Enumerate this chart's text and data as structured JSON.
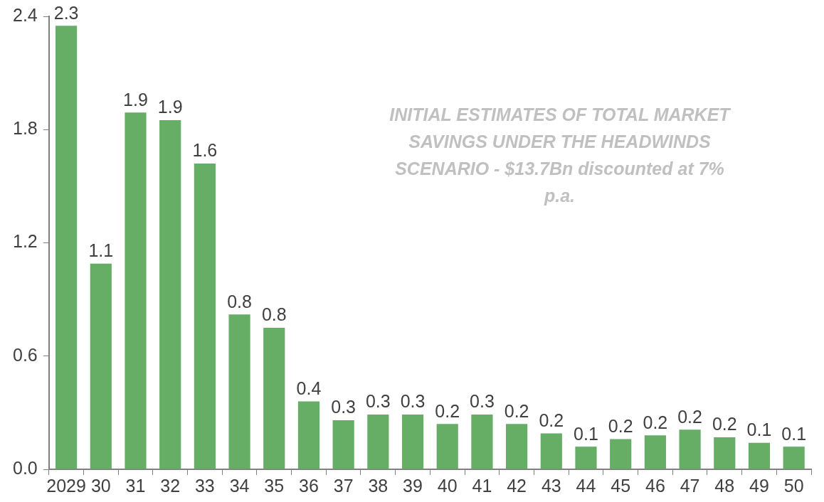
{
  "chart_data": {
    "type": "bar",
    "categories": [
      "2029",
      "30",
      "31",
      "32",
      "33",
      "34",
      "35",
      "36",
      "37",
      "38",
      "39",
      "40",
      "41",
      "42",
      "43",
      "44",
      "45",
      "46",
      "47",
      "48",
      "49",
      "50"
    ],
    "values": [
      2.35,
      1.09,
      1.89,
      1.85,
      1.62,
      0.82,
      0.75,
      0.36,
      0.26,
      0.29,
      0.29,
      0.24,
      0.29,
      0.24,
      0.19,
      0.12,
      0.16,
      0.18,
      0.21,
      0.17,
      0.14,
      0.12
    ],
    "value_labels": [
      "2.3",
      "1.1",
      "1.9",
      "1.9",
      "1.6",
      "0.8",
      "0.8",
      "0.4",
      "0.3",
      "0.3",
      "0.3",
      "0.2",
      "0.3",
      "0.2",
      "0.2",
      "0.1",
      "0.2",
      "0.2",
      "0.2",
      "0.2",
      "0.1",
      "0.1"
    ],
    "color": "#66ad66",
    "ylim": [
      0,
      2.4
    ],
    "yticks": [
      {
        "value": 0,
        "label": "0.0"
      },
      {
        "value": 0.6,
        "label": "0.6"
      },
      {
        "value": 1.2,
        "label": "1.2"
      },
      {
        "value": 1.8,
        "label": "1.8"
      },
      {
        "value": 2.4,
        "label": "2.4"
      }
    ],
    "grid": false,
    "legend": false,
    "annotations": [
      "INITIAL ESTIMATES OF TOTAL MARKET SAVINGS UNDER THE HEADWINDS SCENARIO - $13.7Bn discounted at 7% p.a."
    ]
  }
}
